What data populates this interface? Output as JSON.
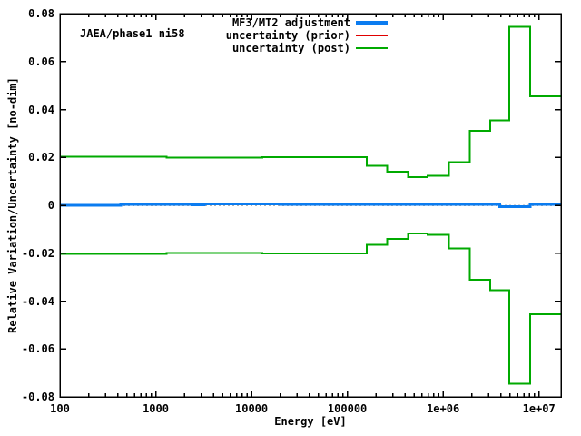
{
  "chart_data": {
    "type": "line",
    "title_label": "JAEA/phase1 ni58",
    "xlabel": "Energy [eV]",
    "ylabel": "Relative Variation/Uncertainty [no-dim]",
    "xscale": "log",
    "xlim": [
      100,
      17000000
    ],
    "ylim": [
      -0.08,
      0.08
    ],
    "grid": false,
    "zero_line_color": "#b0b0b0",
    "xtick_values": [
      100,
      1000,
      10000,
      100000,
      1000000,
      10000000
    ],
    "xtick_labels": [
      "100",
      "1000",
      "10000",
      "100000",
      "1e+06",
      "1e+07"
    ],
    "ytick_values": [
      0.08,
      0.06,
      0.04,
      0.02,
      0,
      -0.02,
      -0.04,
      -0.06,
      -0.08
    ],
    "ytick_labels": [
      "0.08",
      "0.06",
      "0.04",
      "0.02",
      "0",
      "-0.02",
      "-0.04",
      "-0.06",
      "-0.08"
    ],
    "legend_position": "top-center-inside",
    "legend": [
      {
        "label": "MF3/MT2 adjustment",
        "color": "#0b7cf0",
        "sample_height": 4
      },
      {
        "label": "uncertainty (prior)",
        "color": "#e00000",
        "sample_height": 2
      },
      {
        "label": "uncertainty (post)",
        "color": "#00aa00",
        "sample_height": 2
      }
    ],
    "series": [
      {
        "name": "uncertainty-prior-upper",
        "color": "#e00000",
        "width": 1,
        "steps": [
          [
            100,
            0.0202
          ],
          [
            1300,
            0.0199
          ],
          [
            13000,
            0.0201
          ],
          [
            160000,
            0.0165
          ],
          [
            260000,
            0.014
          ],
          [
            430000,
            0.0118
          ],
          [
            690000,
            0.0124
          ],
          [
            1150000,
            0.018
          ],
          [
            1900000,
            0.031
          ],
          [
            3100000,
            0.0355
          ],
          [
            4900000,
            0.0745
          ],
          [
            8100000,
            0.0455
          ]
        ]
      },
      {
        "name": "uncertainty-prior-lower",
        "color": "#e00000",
        "width": 1,
        "steps": [
          [
            100,
            -0.0202
          ],
          [
            1300,
            -0.0199
          ],
          [
            13000,
            -0.0201
          ],
          [
            160000,
            -0.0165
          ],
          [
            260000,
            -0.014
          ],
          [
            430000,
            -0.0118
          ],
          [
            690000,
            -0.0124
          ],
          [
            1150000,
            -0.018
          ],
          [
            1900000,
            -0.031
          ],
          [
            3100000,
            -0.0355
          ],
          [
            4900000,
            -0.0745
          ],
          [
            8100000,
            -0.0455
          ]
        ]
      },
      {
        "name": "uncertainty-post-upper",
        "color": "#00aa00",
        "width": 2,
        "steps": [
          [
            100,
            0.0202
          ],
          [
            1300,
            0.0199
          ],
          [
            13000,
            0.0201
          ],
          [
            160000,
            0.0165
          ],
          [
            260000,
            0.014
          ],
          [
            430000,
            0.0118
          ],
          [
            690000,
            0.0124
          ],
          [
            1150000,
            0.018
          ],
          [
            1900000,
            0.031
          ],
          [
            3100000,
            0.0355
          ],
          [
            4900000,
            0.0745
          ],
          [
            8100000,
            0.0455
          ]
        ]
      },
      {
        "name": "uncertainty-post-lower",
        "color": "#00aa00",
        "width": 2,
        "steps": [
          [
            100,
            -0.0202
          ],
          [
            1300,
            -0.0199
          ],
          [
            13000,
            -0.0201
          ],
          [
            160000,
            -0.0165
          ],
          [
            260000,
            -0.014
          ],
          [
            430000,
            -0.0118
          ],
          [
            690000,
            -0.0124
          ],
          [
            1150000,
            -0.018
          ],
          [
            1900000,
            -0.031
          ],
          [
            3100000,
            -0.0355
          ],
          [
            4900000,
            -0.0745
          ],
          [
            8100000,
            -0.0455
          ]
        ]
      },
      {
        "name": "mf3-mt2-adjustment",
        "color": "#0b7cf0",
        "width": 3,
        "steps": [
          [
            100,
            0.0
          ],
          [
            430,
            0.0004
          ],
          [
            2400,
            0.0001
          ],
          [
            3200,
            0.0005
          ],
          [
            20000,
            0.0003
          ],
          [
            150000,
            0.0004
          ],
          [
            3900000,
            -0.0005
          ],
          [
            8100000,
            0.0003
          ]
        ]
      }
    ]
  }
}
